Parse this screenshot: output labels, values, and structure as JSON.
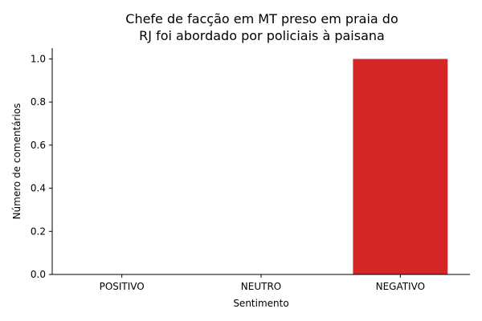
{
  "chart_data": {
    "type": "bar",
    "title_lines": [
      "Chefe de facção em MT preso em praia do",
      "RJ foi abordado por policiais à paisana"
    ],
    "xlabel": "Sentimento",
    "ylabel": "Número de comentários",
    "categories": [
      "POSITIVO",
      "NEUTRO",
      "NEGATIVO"
    ],
    "values": [
      0,
      0,
      1
    ],
    "colors": [
      "#2ca02c",
      "#7f7f7f",
      "#d62728"
    ],
    "ylim": [
      0,
      1.05
    ],
    "yticks": [
      "0.0",
      "0.2",
      "0.4",
      "0.6",
      "0.8",
      "1.0"
    ],
    "grid": false,
    "legend": "none"
  }
}
